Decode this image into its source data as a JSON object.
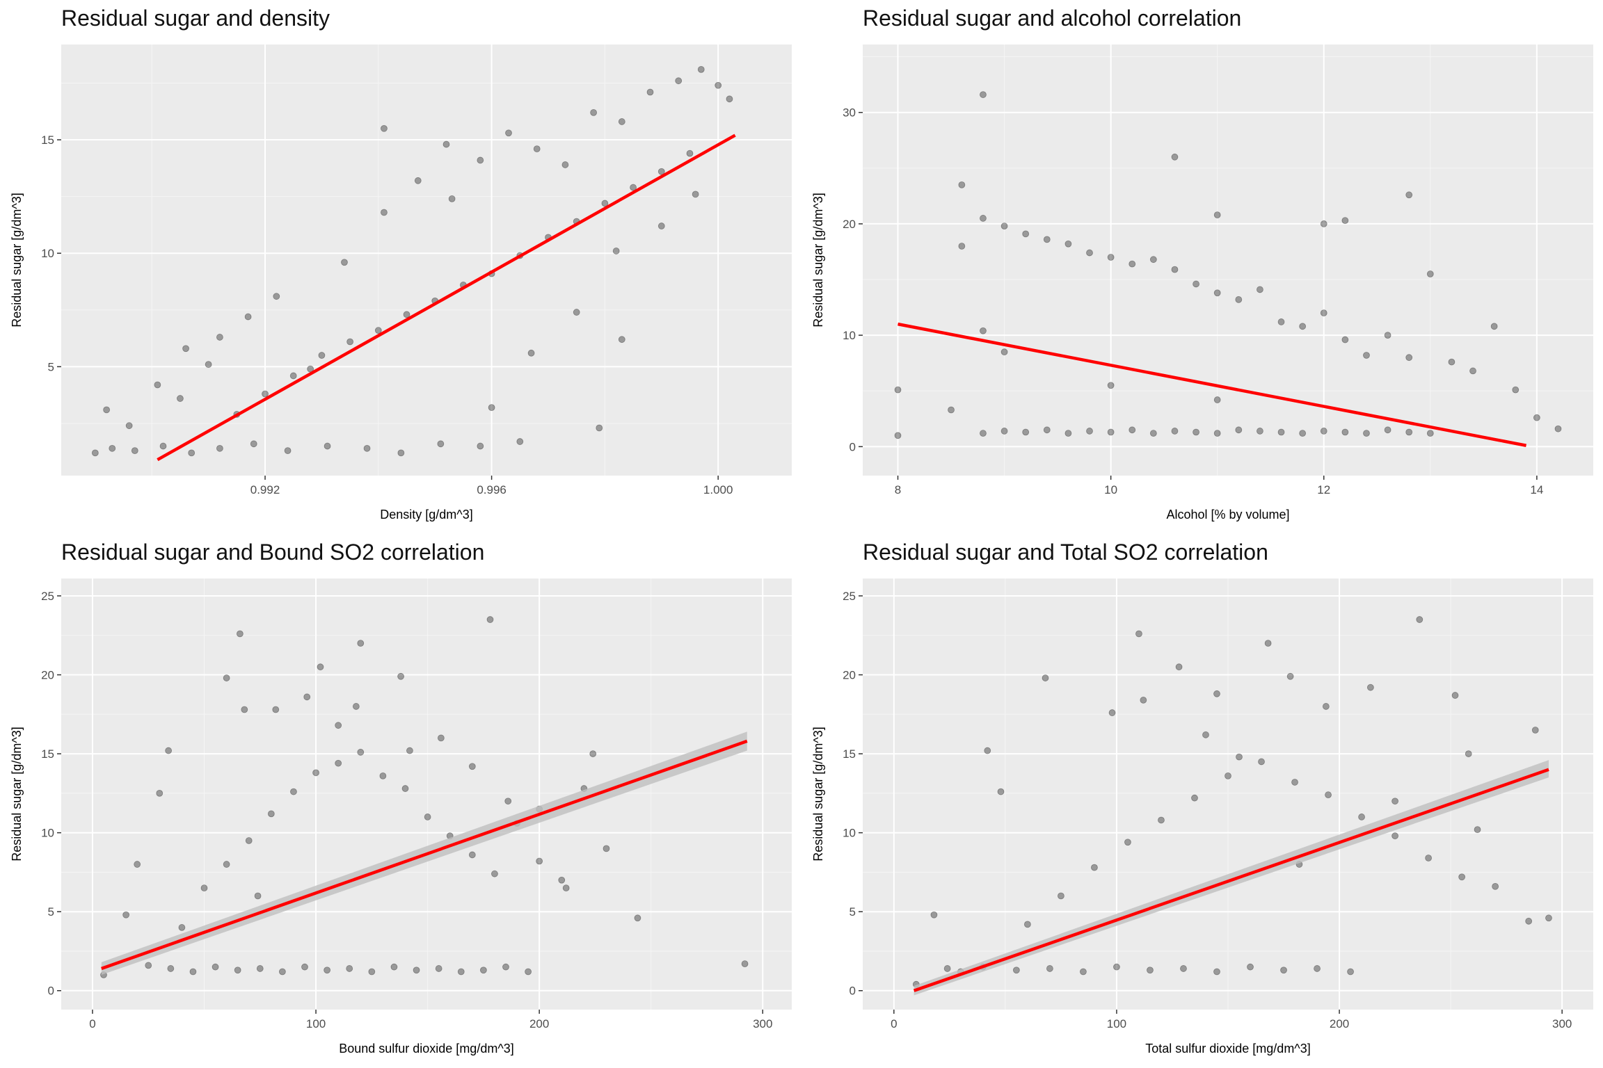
{
  "panels": [
    {
      "title": "Residual sugar and density",
      "chart_data": {
        "type": "scatter",
        "title": "Residual sugar and density",
        "xlabel": "Density [g/dm^3]",
        "ylabel": "Residual sugar [g/dm^3]",
        "xlim": [
          0.9884,
          1.0013
        ],
        "ylim": [
          0.2,
          19.2
        ],
        "x_ticks": [
          0.992,
          0.996,
          1.0
        ],
        "x_tick_labels": [
          "0.992",
          "0.996",
          "1.000"
        ],
        "y_ticks": [
          5,
          10,
          15
        ],
        "y_tick_labels": [
          "5",
          "10",
          "15"
        ],
        "grid": true,
        "trend_line": {
          "x": [
            0.9901,
            1.0003
          ],
          "y": [
            0.9,
            15.2
          ],
          "color": "#ff0000"
        },
        "confidence_band": false,
        "point_color": "#000000",
        "point_opacity": 0.35,
        "points": {
          "x": [
            0.989,
            0.9893,
            0.9897,
            0.9902,
            0.9907,
            0.9912,
            0.9918,
            0.9924,
            0.9931,
            0.9938,
            0.9944,
            0.9951,
            0.9958,
            0.9965,
            0.9906,
            0.9912,
            0.9917,
            0.9922,
            0.9928,
            0.9934,
            0.9941,
            0.9947,
            0.9953,
            0.9958,
            0.9963,
            0.9968,
            0.9973,
            0.9978,
            0.9983,
            0.9988,
            0.9993,
            0.9997,
            1.0,
            1.0002,
            0.9892,
            0.9896,
            0.9901,
            0.9905,
            0.991,
            0.9915,
            0.992,
            0.9925,
            0.993,
            0.9935,
            0.994,
            0.9945,
            0.995,
            0.9955,
            0.996,
            0.9965,
            0.997,
            0.9975,
            0.998,
            0.9985,
            0.999,
            0.9995,
            0.996,
            0.9967,
            0.9975,
            0.9982,
            0.999,
            0.9996,
            0.9941,
            0.9952,
            0.9979,
            0.9983
          ],
          "y": [
            1.2,
            1.4,
            1.3,
            1.5,
            1.2,
            1.4,
            1.6,
            1.3,
            1.5,
            1.4,
            1.2,
            1.6,
            1.5,
            1.7,
            5.8,
            6.3,
            7.2,
            8.1,
            4.9,
            9.6,
            11.8,
            13.2,
            12.4,
            14.1,
            15.3,
            14.6,
            13.9,
            16.2,
            15.8,
            17.1,
            17.6,
            18.1,
            17.4,
            16.8,
            3.1,
            2.4,
            4.2,
            3.6,
            5.1,
            2.9,
            3.8,
            4.6,
            5.5,
            6.1,
            6.6,
            7.3,
            7.9,
            8.6,
            9.1,
            9.9,
            10.7,
            11.4,
            12.2,
            12.9,
            13.6,
            14.4,
            3.2,
            5.6,
            7.4,
            10.1,
            11.2,
            12.6,
            15.5,
            14.8,
            2.3,
            6.2
          ]
        }
      }
    },
    {
      "title": "Residual sugar and alcohol correlation",
      "chart_data": {
        "type": "scatter",
        "title": "Residual sugar and alcohol correlation",
        "xlabel": "Alcohol [% by volume]",
        "ylabel": "Residual sugar [g/dm^3]",
        "xlim": [
          7.67,
          14.53
        ],
        "ylim": [
          -2.6,
          36.1
        ],
        "x_ticks": [
          8,
          10,
          12,
          14
        ],
        "x_tick_labels": [
          "8",
          "10",
          "12",
          "14"
        ],
        "y_ticks": [
          0,
          10,
          20,
          30
        ],
        "y_tick_labels": [
          "0",
          "10",
          "20",
          "30"
        ],
        "grid": true,
        "trend_line": {
          "x": [
            8.0,
            13.9
          ],
          "y": [
            11.0,
            0.1
          ],
          "color": "#ff0000"
        },
        "confidence_band": false,
        "point_color": "#000000",
        "point_opacity": 0.35,
        "points": {
          "x": [
            8.0,
            8.0,
            8.5,
            8.8,
            8.6,
            8.6,
            8.8,
            9.0,
            9.2,
            9.4,
            9.6,
            9.8,
            10.0,
            10.2,
            10.4,
            10.6,
            10.8,
            11.0,
            11.2,
            11.4,
            11.6,
            11.8,
            12.0,
            12.2,
            12.4,
            12.6,
            12.8,
            13.0,
            13.2,
            13.4,
            13.6,
            13.8,
            14.0,
            14.2,
            8.8,
            9.0,
            9.2,
            9.4,
            9.6,
            9.8,
            10.0,
            10.2,
            10.4,
            10.6,
            10.8,
            11.0,
            11.2,
            11.4,
            11.6,
            11.8,
            12.0,
            12.2,
            12.4,
            12.6,
            12.8,
            13.0,
            10.6,
            11.0,
            12.0,
            12.8,
            8.8,
            12.2,
            9.0,
            10.0,
            11.0
          ],
          "y": [
            1.0,
            5.1,
            3.3,
            31.6,
            23.5,
            18.0,
            20.5,
            19.8,
            19.1,
            18.6,
            18.2,
            17.4,
            17.0,
            16.4,
            16.8,
            15.9,
            14.6,
            13.8,
            13.2,
            14.1,
            11.2,
            10.8,
            12.0,
            9.6,
            8.2,
            10.0,
            8.0,
            15.5,
            7.6,
            6.8,
            10.8,
            5.1,
            2.6,
            1.6,
            1.2,
            1.4,
            1.3,
            1.5,
            1.2,
            1.4,
            1.3,
            1.5,
            1.2,
            1.4,
            1.3,
            1.2,
            1.5,
            1.4,
            1.3,
            1.2,
            1.4,
            1.3,
            1.2,
            1.5,
            1.3,
            1.2,
            26.0,
            20.8,
            20.0,
            22.6,
            10.4,
            20.3,
            8.5,
            5.5,
            4.2
          ]
        }
      }
    },
    {
      "title": "Residual sugar and Bound SO2 correlation",
      "chart_data": {
        "type": "scatter",
        "title": "Residual sugar and Bound SO2 correlation",
        "xlabel": "Bound sulfur dioxide [mg/dm^3]",
        "ylabel": "Residual sugar [g/dm^3]",
        "xlim": [
          -14,
          313
        ],
        "ylim": [
          -1.2,
          26.1
        ],
        "x_ticks": [
          0,
          100,
          200,
          300
        ],
        "x_tick_labels": [
          "0",
          "100",
          "200",
          "300"
        ],
        "y_ticks": [
          0,
          5,
          10,
          15,
          20,
          25
        ],
        "y_tick_labels": [
          "0",
          "5",
          "10",
          "15",
          "20",
          "25"
        ],
        "grid": true,
        "trend_line": {
          "x": [
            4,
            293
          ],
          "y": [
            1.4,
            15.8
          ],
          "color": "#ff0000"
        },
        "confidence_band": {
          "x": [
            4,
            293
          ],
          "lower": [
            1.0,
            15.2
          ],
          "upper": [
            1.8,
            16.4
          ],
          "color": "#bfbfbf"
        },
        "point_color": "#000000",
        "point_opacity": 0.35,
        "points": {
          "x": [
            5,
            15,
            25,
            35,
            45,
            55,
            65,
            75,
            85,
            95,
            105,
            115,
            125,
            135,
            145,
            155,
            165,
            175,
            185,
            195,
            40,
            50,
            60,
            70,
            80,
            90,
            100,
            110,
            120,
            130,
            140,
            150,
            160,
            170,
            180,
            190,
            200,
            210,
            220,
            230,
            60,
            66,
            102,
            120,
            138,
            178,
            118,
            82,
            96,
            110,
            142,
            156,
            170,
            186,
            200,
            212,
            224,
            244,
            292,
            30,
            34,
            20,
            68,
            74
          ],
          "y": [
            1.0,
            4.8,
            1.6,
            1.4,
            1.2,
            1.5,
            1.3,
            1.4,
            1.2,
            1.5,
            1.3,
            1.4,
            1.2,
            1.5,
            1.3,
            1.4,
            1.2,
            1.3,
            1.5,
            1.2,
            4.0,
            6.5,
            8.0,
            9.5,
            11.2,
            12.6,
            13.8,
            14.4,
            15.1,
            13.6,
            12.8,
            11.0,
            9.8,
            8.6,
            7.4,
            10.6,
            8.2,
            7.0,
            12.8,
            9.0,
            19.8,
            22.6,
            20.5,
            22.0,
            19.9,
            23.5,
            18.0,
            17.8,
            18.6,
            16.8,
            15.2,
            16.0,
            14.2,
            12.0,
            11.5,
            6.5,
            15.0,
            4.6,
            1.7,
            12.5,
            15.2,
            8.0,
            17.8,
            6.0
          ]
        }
      }
    },
    {
      "title": "Residual sugar and Total SO2 correlation",
      "chart_data": {
        "type": "scatter",
        "title": "Residual sugar and Total SO2 correlation",
        "xlabel": "Total sulfur dioxide [mg/dm^3]",
        "ylabel": "Residual sugar [g/dm^3]",
        "xlim": [
          -14,
          314
        ],
        "ylim": [
          -1.2,
          26.1
        ],
        "x_ticks": [
          0,
          100,
          200,
          300
        ],
        "x_tick_labels": [
          "0",
          "100",
          "200",
          "300"
        ],
        "y_ticks": [
          0,
          5,
          10,
          15,
          20,
          25
        ],
        "y_tick_labels": [
          "0",
          "5",
          "10",
          "15",
          "20",
          "25"
        ],
        "grid": true,
        "trend_line": {
          "x": [
            9,
            294
          ],
          "y": [
            0.0,
            14.0
          ],
          "color": "#ff0000"
        },
        "confidence_band": {
          "x": [
            9,
            294
          ],
          "lower": [
            -0.3,
            13.5
          ],
          "upper": [
            0.3,
            14.6
          ],
          "color": "#bfbfbf"
        },
        "point_color": "#000000",
        "point_opacity": 0.35,
        "points": {
          "x": [
            10,
            18,
            24,
            30,
            40,
            55,
            70,
            85,
            100,
            115,
            130,
            145,
            160,
            175,
            190,
            205,
            60,
            75,
            90,
            105,
            120,
            135,
            150,
            165,
            180,
            195,
            210,
            225,
            240,
            255,
            270,
            285,
            68,
            42,
            48,
            110,
            128,
            145,
            168,
            178,
            194,
            214,
            236,
            252,
            288,
            294,
            225,
            258,
            262,
            140,
            155,
            112,
            98,
            182
          ],
          "y": [
            0.4,
            4.8,
            1.4,
            1.2,
            1.5,
            1.3,
            1.4,
            1.2,
            1.5,
            1.3,
            1.4,
            1.2,
            1.5,
            1.3,
            1.4,
            1.2,
            4.2,
            6.0,
            7.8,
            9.4,
            10.8,
            12.2,
            13.6,
            14.5,
            13.2,
            12.4,
            11.0,
            9.8,
            8.4,
            7.2,
            6.6,
            4.4,
            19.8,
            15.2,
            12.6,
            22.6,
            20.5,
            18.8,
            22.0,
            19.9,
            18.0,
            19.2,
            23.5,
            18.7,
            16.5,
            4.6,
            12.0,
            15.0,
            10.2,
            16.2,
            14.8,
            18.4,
            17.6,
            8.0
          ]
        }
      }
    }
  ]
}
